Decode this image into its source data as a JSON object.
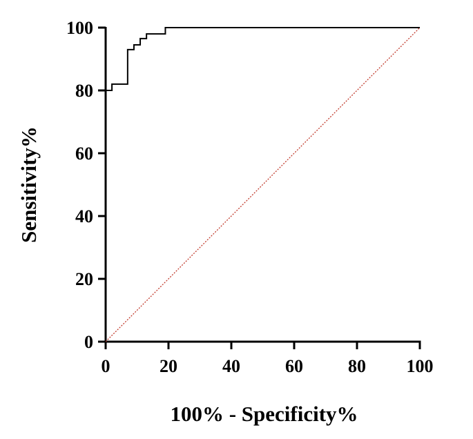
{
  "chart_data": {
    "type": "line",
    "title": "",
    "xlabel": "100% - Specificity%",
    "ylabel": "Sensitivity%",
    "xlim": [
      0,
      100
    ],
    "ylim": [
      0,
      100
    ],
    "x_ticks": [
      "0",
      "20",
      "40",
      "60",
      "80",
      "100"
    ],
    "y_ticks": [
      "0",
      "20",
      "40",
      "60",
      "80",
      "100"
    ],
    "grid": false,
    "legend": "none",
    "series": [
      {
        "style": "step",
        "color": "#000000",
        "points": [
          [
            0,
            80
          ],
          [
            2,
            80
          ],
          [
            2,
            82
          ],
          [
            7,
            82
          ],
          [
            7,
            93
          ],
          [
            9,
            93
          ],
          [
            9,
            94.5
          ],
          [
            11,
            94.5
          ],
          [
            11,
            96.5
          ],
          [
            13,
            96.5
          ],
          [
            13,
            98
          ],
          [
            15,
            98
          ],
          [
            15,
            98
          ],
          [
            19,
            98
          ],
          [
            19,
            100
          ],
          [
            100,
            100
          ]
        ]
      },
      {
        "style": "dotted",
        "color": "#c0392b",
        "points": [
          [
            0,
            0
          ],
          [
            100,
            100
          ]
        ]
      }
    ]
  }
}
